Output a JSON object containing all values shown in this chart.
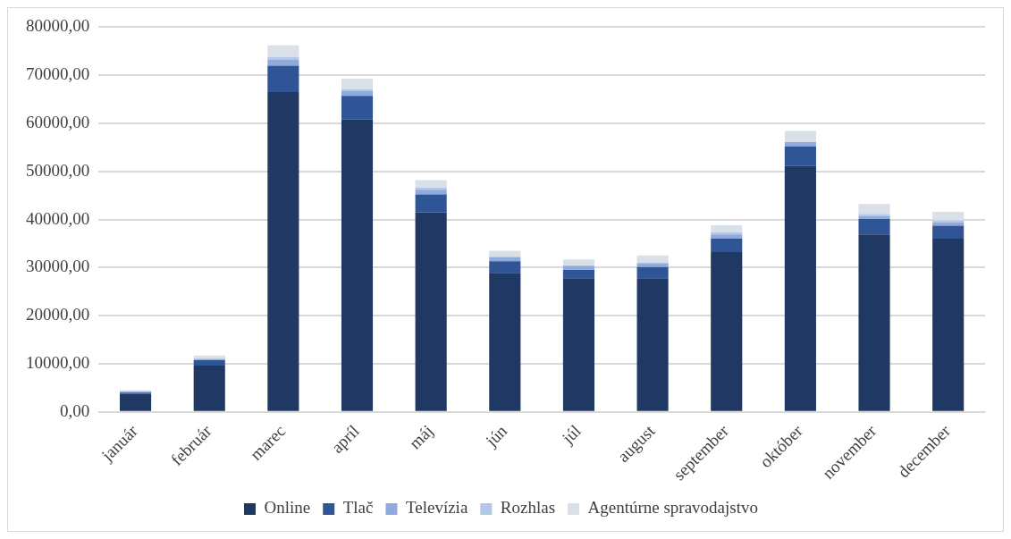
{
  "chart_data": {
    "type": "bar",
    "stacked": true,
    "categories": [
      "január",
      "február",
      "marec",
      "apríl",
      "máj",
      "jún",
      "júl",
      "august",
      "september",
      "október",
      "november",
      "december"
    ],
    "series": [
      {
        "name": "Online",
        "color": "#1f3864",
        "values": [
          3700,
          9600,
          66500,
          60800,
          41500,
          28900,
          27800,
          27800,
          33200,
          51100,
          36900,
          36000
        ]
      },
      {
        "name": "Tlač",
        "color": "#2f5597",
        "values": [
          300,
          1100,
          5500,
          4900,
          3700,
          2400,
          1700,
          2300,
          2800,
          4100,
          3200,
          2700
        ]
      },
      {
        "name": "Televízia",
        "color": "#8faadc",
        "values": [
          200,
          300,
          1300,
          1000,
          1000,
          900,
          900,
          700,
          900,
          900,
          600,
          700
        ]
      },
      {
        "name": "Rozhlas",
        "color": "#b4c7e7",
        "values": [
          null,
          null,
          500,
          400,
          400,
          null,
          null,
          300,
          400,
          null,
          400,
          400
        ]
      },
      {
        "name": "Agentúrne spravodajstvo",
        "color": "#dae0e8",
        "values": [
          300,
          700,
          2400,
          2200,
          1600,
          1300,
          1300,
          1400,
          1500,
          2300,
          2100,
          1800
        ]
      }
    ],
    "ylim": [
      0,
      80000
    ],
    "yticks": [
      {
        "value": 0,
        "label": "0,00"
      },
      {
        "value": 10000,
        "label": "10000,00"
      },
      {
        "value": 20000,
        "label": "20000,00"
      },
      {
        "value": 30000,
        "label": "30000,00"
      },
      {
        "value": 40000,
        "label": "40000,00"
      },
      {
        "value": 50000,
        "label": "50000,00"
      },
      {
        "value": 60000,
        "label": "60000,00"
      },
      {
        "value": 70000,
        "label": "70000,00"
      },
      {
        "value": 80000,
        "label": "80000,00"
      }
    ],
    "grid": "y",
    "legend": "bottom"
  }
}
